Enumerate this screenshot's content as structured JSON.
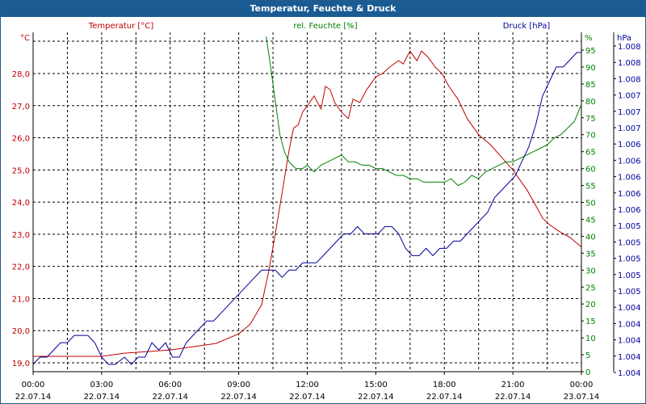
{
  "title": "Temperatur, Feuchte & Druck",
  "colors": {
    "temperature": "#c00000",
    "humidity": "#008000",
    "pressure": "#000099",
    "titlebar": "#1a5b93",
    "grid": "#000000"
  },
  "chart_data": {
    "type": "line",
    "grid": true,
    "x_ticks": [
      {
        "time": "00:00",
        "date": "22.07.14"
      },
      {
        "time": "03:00",
        "date": "22.07.14"
      },
      {
        "time": "06:00",
        "date": "22.07.14"
      },
      {
        "time": "09:00",
        "date": "22.07.14"
      },
      {
        "time": "12:00",
        "date": "22.07.14"
      },
      {
        "time": "15:00",
        "date": "22.07.14"
      },
      {
        "time": "18:00",
        "date": "22.07.14"
      },
      {
        "time": "21:00",
        "date": "22.07.14"
      },
      {
        "time": "00:00",
        "date": "23.07.14"
      }
    ],
    "axes": {
      "temperature": {
        "label": "Temperatur [°C]",
        "unit": "°C",
        "range": [
          18.9,
          29.3
        ],
        "ticks": [
          "19,0",
          "20,0",
          "21,0",
          "22,0",
          "23,0",
          "24,0",
          "25,0",
          "26,0",
          "27,0",
          "28,0"
        ]
      },
      "humidity": {
        "label": "rel. Feuchte [%]",
        "unit": "%",
        "range": [
          0,
          99
        ],
        "ticks": [
          "0",
          "5",
          "10",
          "15",
          "20",
          "25",
          "30",
          "35",
          "40",
          "45",
          "50",
          "55",
          "60",
          "65",
          "70",
          "75",
          "80",
          "85",
          "90",
          "95"
        ]
      },
      "pressure": {
        "label": "Druck [hPa]",
        "unit": "hPa",
        "ticks": [
          "1.004",
          "1.004",
          "1.004",
          "1.004",
          "1.004",
          "1.005",
          "1.005",
          "1.005",
          "1.005",
          "1.005",
          "1.006",
          "1.006",
          "1.006",
          "1.006",
          "1.006",
          "1.007",
          "1.007",
          "1.007",
          "1.008",
          "1.008",
          "1.008"
        ]
      }
    },
    "series": [
      {
        "name": "Temperatur [°C]",
        "axis": "temperature",
        "x_hours": [
          0,
          2,
          3,
          4,
          5,
          6,
          7,
          8,
          9,
          9.5,
          10,
          10.3,
          10.6,
          10.9,
          11.2,
          11.4,
          11.6,
          11.8,
          12,
          12.3,
          12.6,
          12.8,
          13,
          13.2,
          13.5,
          13.8,
          14,
          14.3,
          14.6,
          15,
          15.3,
          15.6,
          16,
          16.2,
          16.5,
          16.8,
          17,
          17.3,
          17.6,
          17.9,
          18.2,
          18.6,
          19,
          19.5,
          20,
          20.5,
          21,
          21.3,
          21.6,
          22,
          22.3,
          22.6,
          23,
          23.5,
          24
        ],
        "values": [
          19.2,
          19.2,
          19.2,
          19.3,
          19.35,
          19.4,
          19.5,
          19.6,
          19.9,
          20.2,
          20.8,
          21.8,
          23.0,
          24.3,
          25.6,
          26.3,
          26.4,
          26.8,
          27.0,
          27.3,
          26.9,
          27.6,
          27.5,
          27.1,
          26.8,
          26.6,
          27.2,
          27.1,
          27.5,
          27.9,
          28.0,
          28.2,
          28.4,
          28.3,
          28.7,
          28.4,
          28.7,
          28.5,
          28.2,
          28.0,
          27.6,
          27.2,
          26.6,
          26.1,
          25.8,
          25.4,
          25.0,
          24.7,
          24.4,
          23.9,
          23.5,
          23.3,
          23.1,
          22.9,
          22.6
        ]
      },
      {
        "name": "rel. Feuchte [%]",
        "axis": "humidity",
        "x_hours": [
          10.2,
          10.4,
          10.6,
          10.8,
          11,
          11.2,
          11.5,
          11.8,
          12,
          12.3,
          12.6,
          12.9,
          13.2,
          13.5,
          13.8,
          14.1,
          14.4,
          14.7,
          15,
          15.3,
          15.6,
          15.9,
          16.2,
          16.5,
          16.8,
          17.1,
          17.4,
          17.7,
          18,
          18.3,
          18.6,
          18.9,
          19.2,
          19.5,
          19.8,
          20.1,
          20.4,
          20.7,
          21,
          21.3,
          21.6,
          21.9,
          22.2,
          22.5,
          22.8,
          23.1,
          23.4,
          23.7,
          24
        ],
        "values": [
          99,
          90,
          80,
          70,
          65,
          62,
          60,
          60,
          61,
          59,
          61,
          62,
          63,
          64,
          62,
          62,
          61,
          61,
          60,
          60,
          59,
          58,
          58,
          57,
          57,
          56,
          56,
          56,
          56,
          57,
          55,
          56,
          58,
          57,
          59,
          60,
          61,
          62,
          62,
          63,
          64,
          65,
          66,
          67,
          69,
          70,
          72,
          74,
          79
        ]
      },
      {
        "name": "Druck [hPa]",
        "axis": "pressure",
        "x_hours": [
          0,
          0.3,
          0.6,
          0.9,
          1.2,
          1.5,
          1.8,
          2.4,
          2.7,
          3.0,
          3.3,
          3.6,
          4.0,
          4.3,
          4.6,
          4.9,
          5.2,
          5.5,
          5.8,
          6.1,
          6.4,
          6.7,
          7.0,
          7.3,
          7.6,
          7.9,
          8.2,
          8.5,
          8.8,
          9.1,
          9.4,
          9.7,
          10.0,
          10.3,
          10.6,
          10.9,
          11.2,
          11.5,
          11.8,
          12.1,
          12.4,
          12.7,
          13.0,
          13.3,
          13.6,
          13.9,
          14.2,
          14.5,
          14.8,
          15.1,
          15.4,
          15.7,
          16.0,
          16.3,
          16.6,
          16.9,
          17.2,
          17.5,
          17.8,
          18.1,
          18.4,
          18.7,
          19.0,
          19.3,
          19.6,
          19.9,
          20.2,
          20.5,
          20.8,
          21.1,
          21.4,
          21.7,
          22.0,
          22.3,
          22.6,
          22.9,
          23.2,
          23.5,
          23.8,
          24
        ],
        "values": [
          1.0038,
          1.0039,
          1.0039,
          1.004,
          1.0041,
          1.0041,
          1.0042,
          1.0042,
          1.0041,
          1.0039,
          1.0038,
          1.0038,
          1.0039,
          1.0038,
          1.0039,
          1.0039,
          1.0041,
          1.004,
          1.0041,
          1.0039,
          1.0039,
          1.0041,
          1.0042,
          1.0043,
          1.0044,
          1.0044,
          1.0045,
          1.0046,
          1.0047,
          1.0048,
          1.0049,
          1.005,
          1.0051,
          1.0051,
          1.0051,
          1.005,
          1.0051,
          1.0051,
          1.0052,
          1.0052,
          1.0052,
          1.0053,
          1.0054,
          1.0055,
          1.0056,
          1.0056,
          1.0057,
          1.0056,
          1.0056,
          1.0056,
          1.0057,
          1.0057,
          1.0056,
          1.0054,
          1.0053,
          1.0053,
          1.0054,
          1.0053,
          1.0054,
          1.0054,
          1.0055,
          1.0055,
          1.0056,
          1.0057,
          1.0058,
          1.0059,
          1.0061,
          1.0062,
          1.0063,
          1.0064,
          1.0066,
          1.0068,
          1.0071,
          1.0075,
          1.0077,
          1.0079,
          1.0079,
          1.008,
          1.0081,
          1.0081
        ]
      }
    ]
  }
}
